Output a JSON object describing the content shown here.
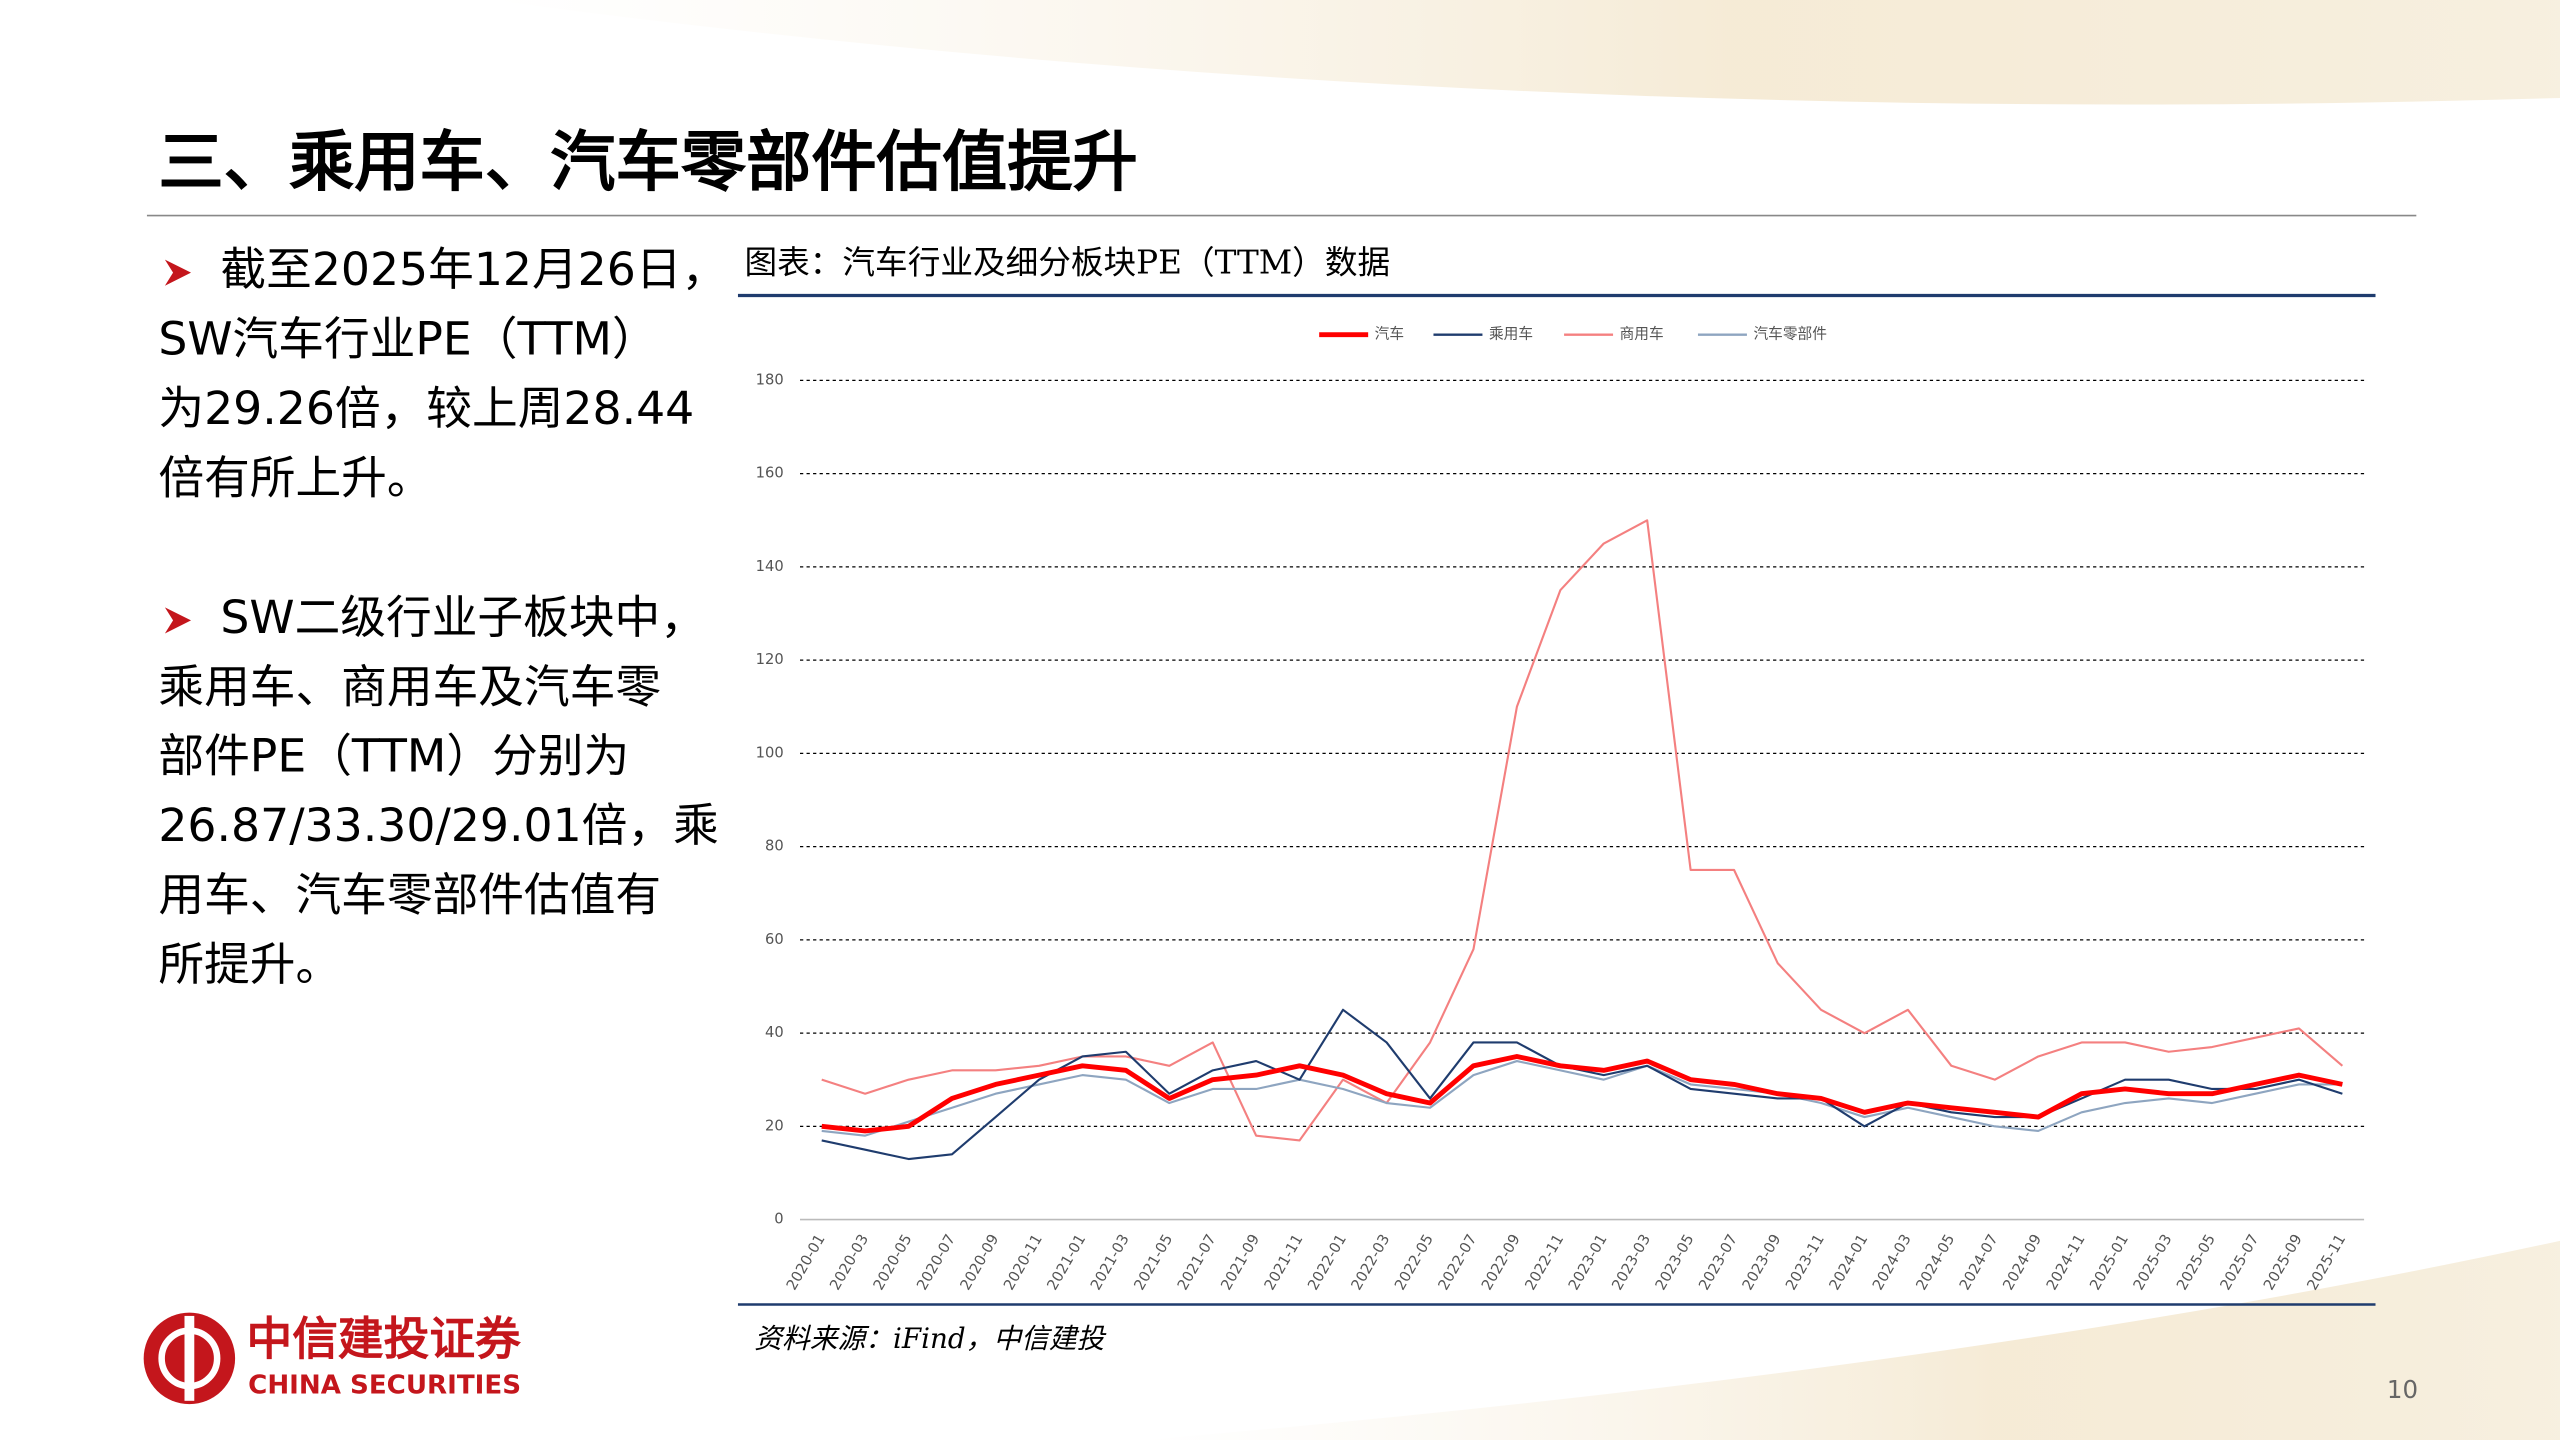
{
  "slide": {
    "title": "三、乘用车、汽车零部件估值提升",
    "paragraphs": [
      [
        "截至2025年12月26日，",
        "SW汽车行业PE（TTM）",
        "为29.26倍，较上周28.44",
        "倍有所上升。"
      ],
      [
        "SW二级行业子板块中，",
        "乘用车、商用车及汽车零",
        "部件PE（TTM）分别为",
        "26.87/33.30/29.01倍，乘",
        "用车、汽车零部件估值有",
        "所提升。"
      ]
    ],
    "source": "资料来源：iFind，中信建投",
    "page_number": "10",
    "logo_cn": "中信建投证券",
    "logo_en": "CHINA SECURITIES"
  },
  "chart_data": {
    "type": "line",
    "title": "图表：汽车行业及细分板块PE（TTM）数据",
    "categories": [
      "2020-01",
      "2020-03",
      "2020-05",
      "2020-07",
      "2020-09",
      "2020-11",
      "2021-01",
      "2021-03",
      "2021-05",
      "2021-07",
      "2021-09",
      "2021-11",
      "2022-01",
      "2022-03",
      "2022-05",
      "2022-07",
      "2022-09",
      "2022-11",
      "2023-01",
      "2023-03",
      "2023-05",
      "2023-07",
      "2023-09",
      "2023-11",
      "2024-01",
      "2024-03",
      "2024-05",
      "2024-07",
      "2024-09",
      "2024-11",
      "2025-01",
      "2025-03",
      "2025-05",
      "2025-07",
      "2025-09",
      "2025-11"
    ],
    "series": [
      {
        "name": "汽车",
        "color": "#ff0000",
        "values": [
          20,
          19,
          20,
          26,
          29,
          31,
          33,
          32,
          26,
          30,
          31,
          33,
          31,
          27,
          25,
          33,
          35,
          33,
          32,
          34,
          30,
          29,
          27,
          26,
          23,
          25,
          24,
          23,
          22,
          27,
          28,
          27,
          27,
          29,
          31,
          29
        ]
      },
      {
        "name": "乘用车",
        "color": "#1f3c6e",
        "values": [
          17,
          15,
          13,
          14,
          22,
          30,
          35,
          36,
          27,
          32,
          34,
          30,
          45,
          38,
          26,
          38,
          38,
          33,
          31,
          33,
          28,
          27,
          26,
          26,
          20,
          25,
          23,
          22,
          22,
          26,
          30,
          30,
          28,
          28,
          30,
          27
        ]
      },
      {
        "name": "商用车",
        "color": "#f48080",
        "values": [
          30,
          27,
          30,
          32,
          32,
          33,
          35,
          35,
          33,
          38,
          18,
          17,
          30,
          25,
          38,
          58,
          110,
          135,
          145,
          150,
          75,
          75,
          55,
          45,
          40,
          45,
          33,
          30,
          35,
          38,
          38,
          36,
          37,
          39,
          41,
          33
        ]
      },
      {
        "name": "汽车零部件",
        "color": "#8ea5c0",
        "values": [
          19,
          18,
          21,
          24,
          27,
          29,
          31,
          30,
          25,
          28,
          28,
          30,
          28,
          25,
          24,
          31,
          34,
          32,
          30,
          33,
          29,
          28,
          27,
          25,
          22,
          24,
          22,
          20,
          19,
          23,
          25,
          26,
          25,
          27,
          29,
          29
        ]
      }
    ],
    "ylim": [
      0,
      180
    ],
    "yticks": [
      0,
      20,
      40,
      60,
      80,
      100,
      120,
      140,
      160,
      180
    ],
    "grid": true,
    "legend": "top"
  }
}
